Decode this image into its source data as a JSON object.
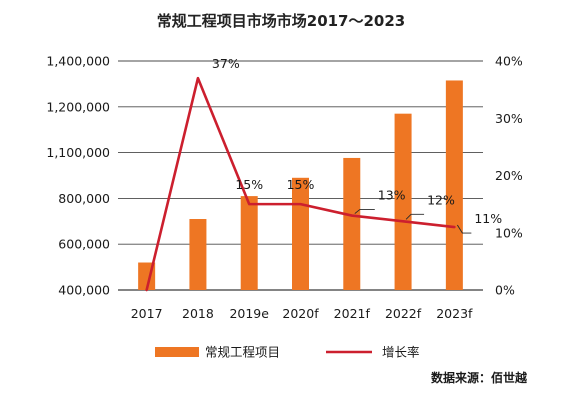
{
  "chart_data": {
    "type": "bar",
    "title": "常规工程项目市场市场2017～2023",
    "categories": [
      "2017",
      "2018",
      "2019e",
      "2020f",
      "2021f",
      "2022f",
      "2023f"
    ],
    "series": [
      {
        "name": "常规工程项目",
        "type": "bar",
        "axis": "left",
        "color": "#EE7623",
        "values": [
          520000,
          710000,
          815000,
          935000,
          1065000,
          1185000,
          1315000
        ]
      },
      {
        "name": "增长率",
        "type": "line",
        "axis": "right",
        "color": "#CC1F2E",
        "values": [
          0,
          37,
          15,
          15,
          13,
          12,
          11
        ],
        "labels": [
          "",
          "37%",
          "15%",
          "15%",
          "13%",
          "12%",
          "11%"
        ]
      }
    ],
    "y_left": {
      "min": 400000,
      "max": 1400000,
      "ticks": [
        400000,
        600000,
        800000,
        1100000,
        1200000,
        1400000
      ],
      "tick_labels": [
        "400,000",
        "600,000",
        "800,000",
        "1,100,000",
        "1,200,000",
        "1,400,000"
      ]
    },
    "y_right": {
      "min": 0,
      "max": 40,
      "ticks": [
        0,
        10,
        20,
        30,
        40
      ],
      "tick_labels": [
        "0%",
        "10%",
        "20%",
        "30%",
        "40%"
      ]
    },
    "grid": true,
    "legend_position": "bottom"
  },
  "source_text": "数据来源：佰世越"
}
